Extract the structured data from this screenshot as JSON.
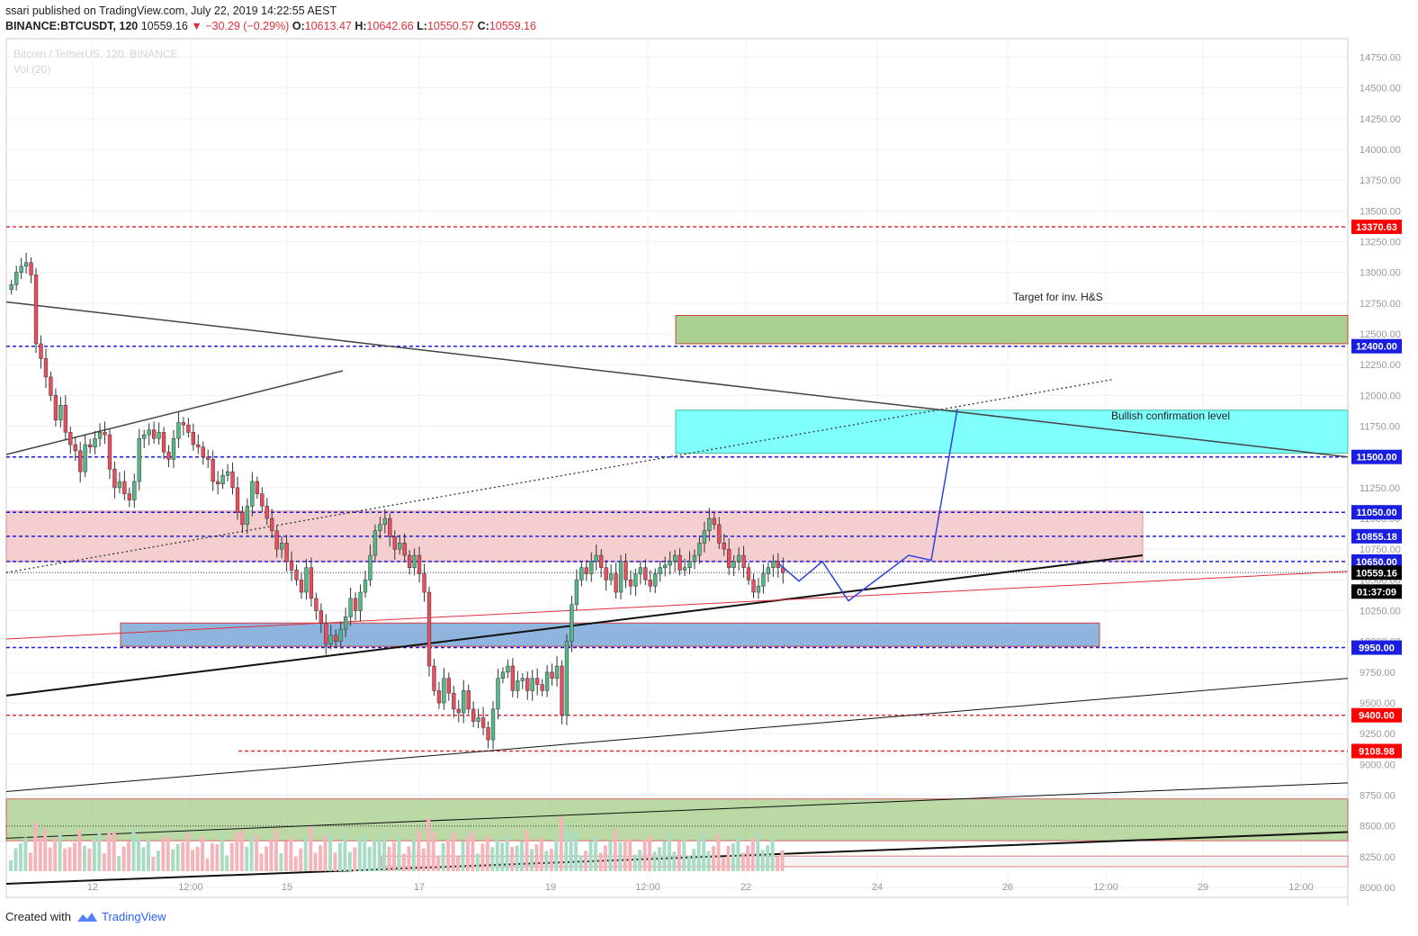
{
  "header": {
    "publisher": "ssari",
    "published_text": "published on TradingView.com, July 22, 2019 14:22:55 AEST",
    "symbol": "BINANCE:BTCUSDT, 120",
    "last": "10559.16",
    "change": "−30.29 (−0.29%)",
    "open_label": "O:",
    "open": "10613.47",
    "high_label": "H:",
    "high": "10642.66",
    "low_label": "L:",
    "low": "10550.57",
    "close_label": "C:",
    "close": "10559.16"
  },
  "legend": {
    "series_title": "Bitcoin / TetherUS, 120, BINANCE",
    "volume_title": "Vol (20)"
  },
  "footer": {
    "created_with": "Created with",
    "brand": "TradingView"
  },
  "colors": {
    "up": "#53b987",
    "down": "#eb4d5c",
    "vol_up": "#a8dcc5",
    "vol_down": "#f5b4ba",
    "red_line": "#e0313b",
    "blue_line": "#1a1ee0",
    "green_zone": "#a9d08e",
    "pink_zone": "#f4c7c7",
    "blue_zone": "#8fb4de",
    "cyan_zone": "#80ffff",
    "projection": "#3040e0"
  },
  "chart_data": {
    "type": "candlestick",
    "title": "Bitcoin / TetherUS, 120, BINANCE",
    "y_range": [
      7920,
      14900
    ],
    "y_ticks": [
      "14750.00",
      "14500.00",
      "14250.00",
      "14000.00",
      "13750.00",
      "13500.00",
      "13250.00",
      "13000.00",
      "12750.00",
      "12500.00",
      "12250.00",
      "12000.00",
      "11750.00",
      "11500.00",
      "11250.00",
      "11000.00",
      "10750.00",
      "10500.00",
      "10250.00",
      "10000.00",
      "9750.00",
      "9500.00",
      "9250.00",
      "9000.00",
      "8750.00",
      "8500.00",
      "8250.00",
      "8000.00"
    ],
    "x_ticks": [
      "12",
      "12:00",
      "15",
      "17",
      "19",
      "12:00",
      "22",
      "24",
      "26",
      "12:00",
      "29",
      "12:00"
    ],
    "price_labels": [
      {
        "value": 13370.63,
        "text": "13370.63",
        "style": "red-dashed"
      },
      {
        "value": 12400,
        "text": "12400.00",
        "style": "blue-dashed"
      },
      {
        "value": 11500,
        "text": "11500.00",
        "style": "blue-dashed"
      },
      {
        "value": 11050,
        "text": "11050.00",
        "style": "blue-dashed"
      },
      {
        "value": 10855.18,
        "text": "10855.18",
        "style": "blue-dashed"
      },
      {
        "value": 10650,
        "text": "10650.00",
        "style": "blue-dashed"
      },
      {
        "value": 10559.16,
        "text": "10559.16",
        "style": "last-price"
      },
      {
        "value": 9950,
        "text": "9950.00",
        "style": "blue-dashed"
      },
      {
        "value": 9400,
        "text": "9400.00",
        "style": "red-dashed"
      },
      {
        "value": 9108.98,
        "text": "9108.98",
        "style": "red-dashed-short"
      }
    ],
    "countdown": "01:37:09",
    "annotations": [
      "Target for inv. H&S",
      "Bullish confirmation level"
    ],
    "series": [
      {
        "name": "BTCUSDT",
        "close": [
          12900,
          13000,
          13050,
          13080,
          12980,
          12420,
          12300,
          12150,
          12000,
          11800,
          11920,
          11700,
          11600,
          11550,
          11380,
          11600,
          11580,
          11650,
          11700,
          11680,
          11400,
          11250,
          11300,
          11200,
          11150,
          11300,
          11650,
          11680,
          11720,
          11650,
          11700,
          11540,
          11480,
          11650,
          11780,
          11760,
          11700,
          11600,
          11580,
          11500,
          11480,
          11300,
          11280,
          11350,
          11380,
          11250,
          11050,
          10950,
          11100,
          11300,
          11200,
          11100,
          11000,
          10900,
          10750,
          10800,
          10650,
          10580,
          10500,
          10400,
          10600,
          10350,
          10250,
          10150,
          9980,
          10050,
          10000,
          10100,
          10200,
          10350,
          10250,
          10400,
          10500,
          10700,
          10900,
          10950,
          11000,
          10850,
          10750,
          10800,
          10700,
          10600,
          10700,
          10550,
          10400,
          9800,
          9600,
          9500,
          9700,
          9580,
          9450,
          9420,
          9600,
          9450,
          9350,
          9380,
          9300,
          9200,
          9450,
          9700,
          9750,
          9800,
          9600,
          9680,
          9700,
          9600,
          9700,
          9650,
          9600,
          9750,
          9700,
          9800,
          9400,
          10000,
          10300,
          10500,
          10600,
          10550,
          10650,
          10700,
          10600,
          10500,
          10550,
          10400,
          10650,
          10500,
          10450,
          10550,
          10600,
          10500,
          10450,
          10550,
          10600,
          10620,
          10650,
          10700,
          10580,
          10600,
          10650,
          10700,
          10800,
          10900,
          11000,
          10950,
          10800,
          10750,
          10600,
          10650,
          10700,
          10600,
          10500,
          10400,
          10450,
          10550,
          10600,
          10650,
          10600,
          10559
        ]
      }
    ],
    "volume_axis_max": 1
  }
}
